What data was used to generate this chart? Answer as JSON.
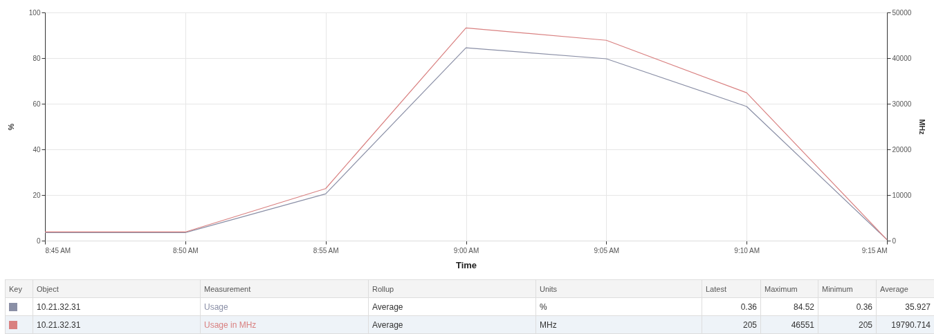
{
  "chart_data": {
    "type": "line",
    "xlabel": "Time",
    "ylabel": "%",
    "y2label": "MHz",
    "x": [
      8.75,
      8.833333,
      8.916667,
      9,
      9.083333,
      9.166667,
      9.25
    ],
    "series": [
      {
        "name": "Usage",
        "color": "#8a8fa6",
        "values": [
          3.5,
          3.5,
          20.5,
          84.5,
          79.7,
          58.8,
          0.4
        ]
      },
      {
        "name": "Usage in MHz",
        "color": "#d98080",
        "axis": "y2",
        "values": [
          1900,
          1900,
          11400,
          46600,
          43900,
          32400,
          200
        ]
      }
    ],
    "xlim": [
      8.75,
      9.25
    ],
    "xticks": [
      {
        "value": 8.75,
        "label": "8:45 AM"
      },
      {
        "value": 8.833333,
        "label": "8:50 AM"
      },
      {
        "value": 8.916667,
        "label": "8:55 AM"
      },
      {
        "value": 9,
        "label": "9:00 AM"
      },
      {
        "value": 9.083333,
        "label": "9:05 AM"
      },
      {
        "value": 9.166667,
        "label": "9:10 AM"
      },
      {
        "value": 9.25,
        "label": "9:15 AM"
      }
    ],
    "ylim": [
      0,
      100
    ],
    "yticks": [
      0,
      20,
      40,
      60,
      80,
      100
    ],
    "y2lim": [
      0,
      50000
    ],
    "y2ticks": [
      0,
      10000,
      20000,
      30000,
      40000,
      50000
    ],
    "grid": true,
    "legend": "bottom",
    "annotations": [
      "Key",
      "Object",
      "Measurement",
      "Rollup",
      "Units",
      "Latest",
      "Maximum",
      "Minimum",
      "Average",
      "10.21.32.31",
      "Average",
      "%",
      "0.36",
      "84.52",
      "0.36",
      "35.927",
      "10.21.32.31",
      "Average",
      "MHz",
      "205",
      "46551",
      "205",
      "19790.714"
    ]
  }
}
